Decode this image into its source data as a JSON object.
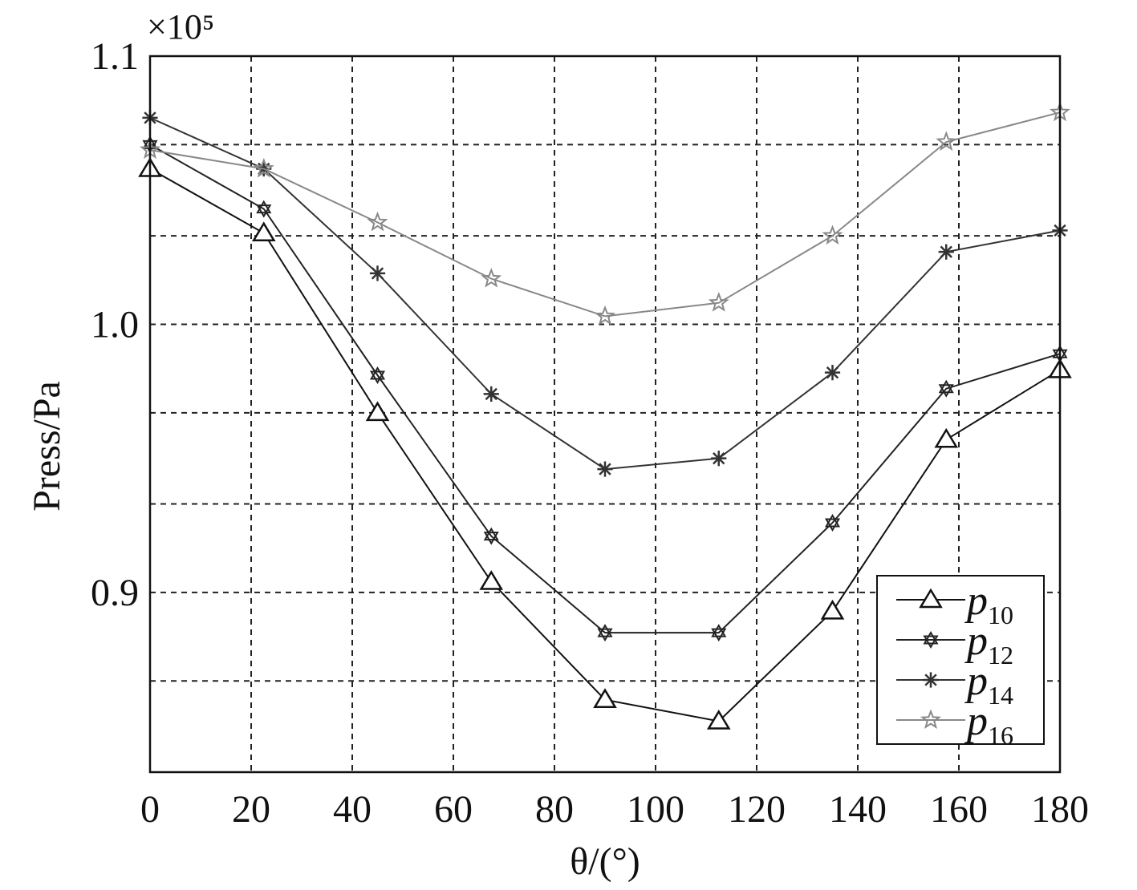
{
  "chart_data": {
    "type": "line",
    "title": "",
    "xlabel": "θ/(°)",
    "ylabel": "Press/Pa",
    "y_multiplier_label": "×10⁵",
    "xlim": [
      0,
      180
    ],
    "ylim": [
      0.833,
      1.1
    ],
    "x_ticks": [
      0,
      20,
      40,
      60,
      80,
      100,
      120,
      140,
      160,
      180
    ],
    "x_tick_labels": [
      "0",
      "20",
      "40",
      "60",
      "80",
      "100",
      "120",
      "140",
      "160",
      "180"
    ],
    "y_gridlines": [
      0.867,
      0.9,
      0.933,
      0.967,
      1.0,
      1.033,
      1.067,
      1.1
    ],
    "y_tick_values": [
      0.9,
      1.0,
      1.1
    ],
    "y_tick_labels": [
      "0.9",
      "1.0",
      "1.1"
    ],
    "grid": true,
    "grid_style": "dashed",
    "legend_position": "bottom-right",
    "x": [
      0,
      22.5,
      45,
      67.5,
      90,
      112.5,
      135,
      157.5,
      180
    ],
    "series": [
      {
        "name_main": "p",
        "name_sub": "10",
        "marker": "triangle",
        "color": "#111111",
        "values": [
          1.058,
          1.034,
          0.967,
          0.904,
          0.86,
          0.852,
          0.893,
          0.957,
          0.983
        ]
      },
      {
        "name_main": "p",
        "name_sub": "12",
        "marker": "hexagram",
        "color": "#222222",
        "values": [
          1.067,
          1.043,
          0.981,
          0.921,
          0.885,
          0.885,
          0.926,
          0.976,
          0.989
        ]
      },
      {
        "name_main": "p",
        "name_sub": "14",
        "marker": "asterisk",
        "color": "#333333",
        "values": [
          1.077,
          1.058,
          1.019,
          0.974,
          0.946,
          0.95,
          0.982,
          1.027,
          1.035
        ]
      },
      {
        "name_main": "p",
        "name_sub": "16",
        "marker": "star",
        "color": "#888888",
        "values": [
          1.065,
          1.058,
          1.038,
          1.017,
          1.003,
          1.008,
          1.033,
          1.068,
          1.079
        ]
      }
    ]
  }
}
